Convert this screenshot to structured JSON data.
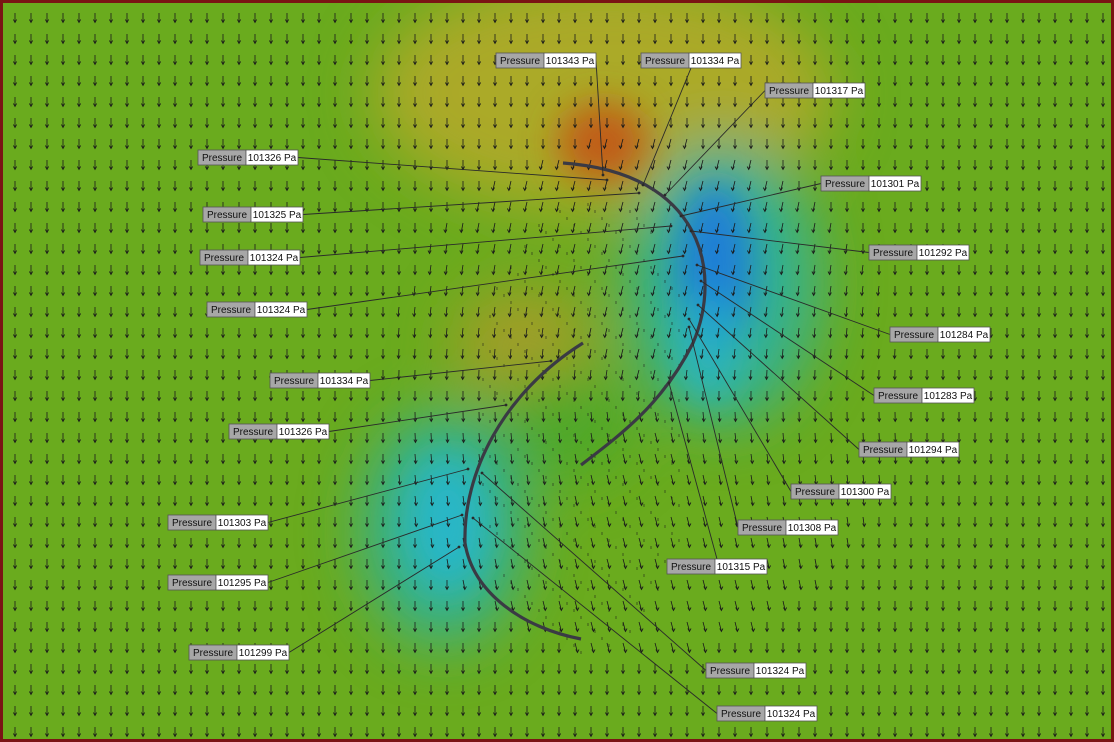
{
  "colors": {
    "frame_border": "#7a1414",
    "field_base": "#6aab1e",
    "high_pressure": "#c25a18",
    "elevated_pressure": "#c0a425",
    "low_pressure": "#1f7cd9",
    "medium_low_pressure": "#27b6c9",
    "vector_color": "#1a1a1a",
    "blade_color": "#3a3a44",
    "label_name_bg": "#a7a7a7",
    "label_value_bg": "#ffffff"
  },
  "probe_name": "Pressure",
  "probes": [
    {
      "id": "p1",
      "value": "101343 Pa"
    },
    {
      "id": "p2",
      "value": "101334 Pa"
    },
    {
      "id": "p3",
      "value": "101317 Pa"
    },
    {
      "id": "p4",
      "value": "101326 Pa"
    },
    {
      "id": "p5",
      "value": "101301 Pa"
    },
    {
      "id": "p6",
      "value": "101325 Pa"
    },
    {
      "id": "p7",
      "value": "101324 Pa"
    },
    {
      "id": "p8",
      "value": "101292 Pa"
    },
    {
      "id": "p9",
      "value": "101324 Pa"
    },
    {
      "id": "p10",
      "value": "101284 Pa"
    },
    {
      "id": "p11",
      "value": "101334 Pa"
    },
    {
      "id": "p12",
      "value": "101283 Pa"
    },
    {
      "id": "p13",
      "value": "101326 Pa"
    },
    {
      "id": "p14",
      "value": "101294 Pa"
    },
    {
      "id": "p15",
      "value": "101300 Pa"
    },
    {
      "id": "p16",
      "value": "101303 Pa"
    },
    {
      "id": "p17",
      "value": "101308 Pa"
    },
    {
      "id": "p18",
      "value": "101315 Pa"
    },
    {
      "id": "p19",
      "value": "101295 Pa"
    },
    {
      "id": "p20",
      "value": "101299 Pa"
    },
    {
      "id": "p21",
      "value": "101324 Pa"
    },
    {
      "id": "p22",
      "value": "101324 Pa"
    }
  ]
}
